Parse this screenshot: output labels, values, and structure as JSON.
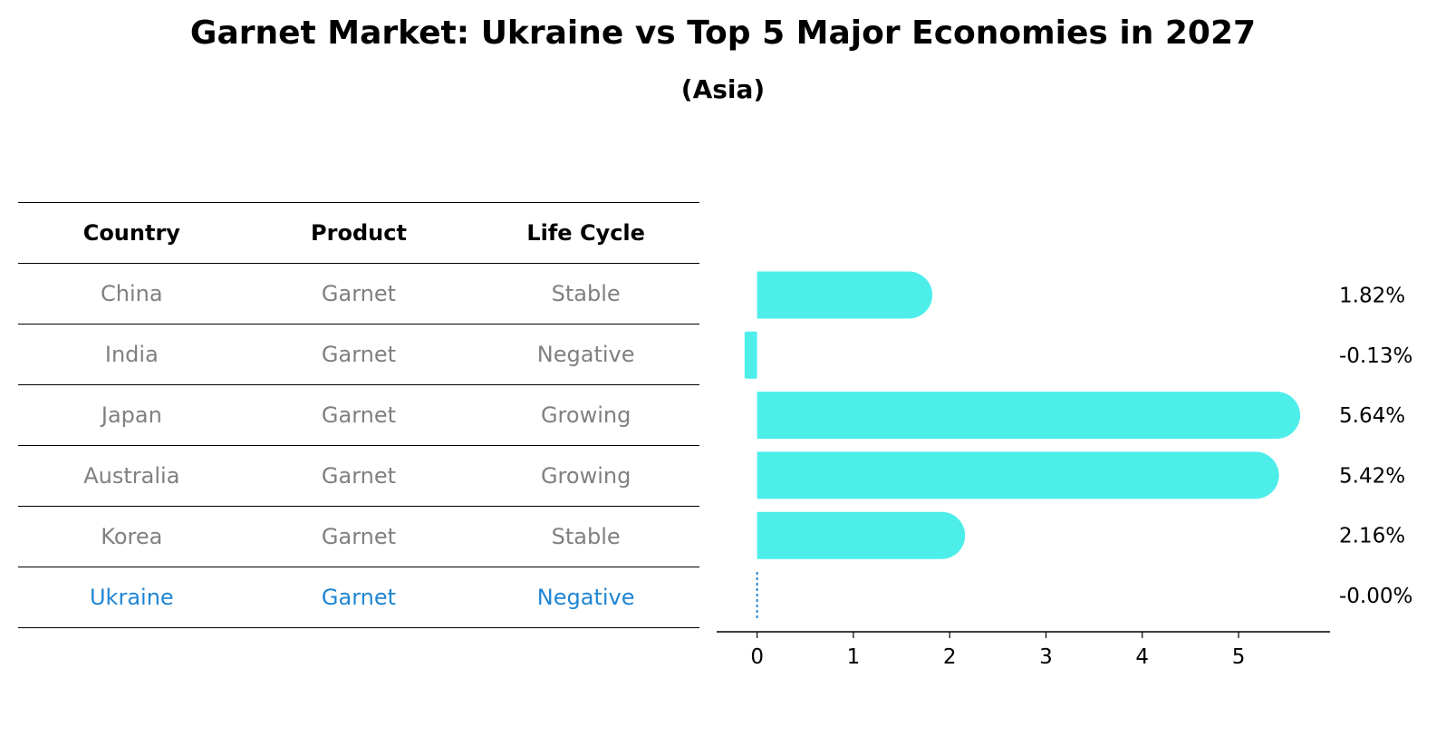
{
  "title": "Garnet Market: Ukraine vs Top 5 Major Economies in 2027",
  "subtitle": "(Asia)",
  "table": {
    "headers": [
      "Country",
      "Product",
      "Life Cycle"
    ],
    "rows": [
      [
        "China",
        "Garnet",
        "Stable"
      ],
      [
        "India",
        "Garnet",
        "Negative"
      ],
      [
        "Japan",
        "Garnet",
        "Growing"
      ],
      [
        "Australia",
        "Garnet",
        "Growing"
      ],
      [
        "Korea",
        "Garnet",
        "Stable"
      ],
      [
        "Ukraine",
        "Garnet",
        "Negative"
      ]
    ],
    "highlight_row": "Ukraine"
  },
  "chart_data": {
    "type": "bar",
    "orientation": "horizontal",
    "categories": [
      "China",
      "India",
      "Japan",
      "Australia",
      "Korea",
      "Ukraine"
    ],
    "values": [
      1.82,
      -0.13,
      5.64,
      5.42,
      2.16,
      -0.0
    ],
    "value_labels": [
      "1.82%",
      "-0.13%",
      "5.64%",
      "5.42%",
      "2.16%",
      "-0.00%"
    ],
    "xticks": [
      "0",
      "1",
      "2",
      "3",
      "4",
      "5"
    ],
    "xlim": [
      -0.42,
      5.95
    ],
    "grid": false,
    "bar_color": "#4deeea",
    "highlight_color": "#1f86d3"
  }
}
